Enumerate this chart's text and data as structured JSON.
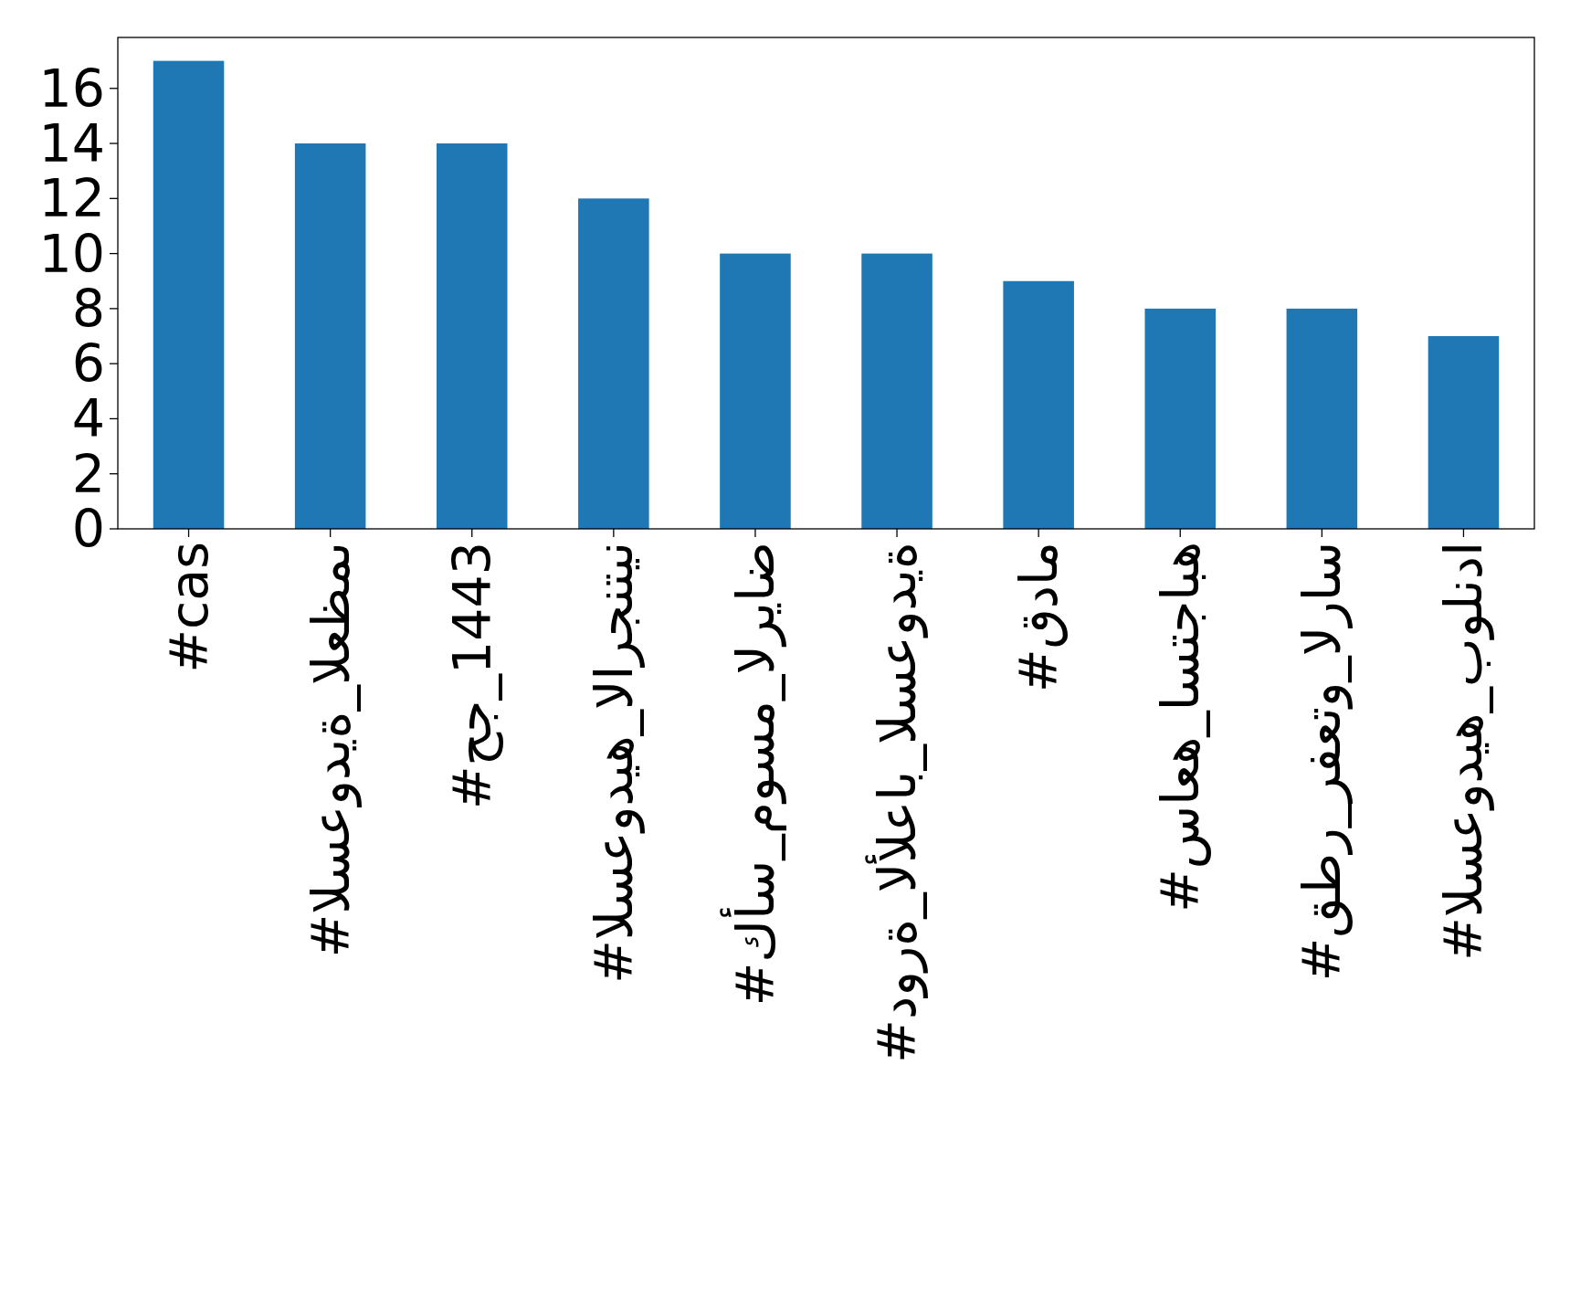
{
  "chart_data": {
    "type": "bar",
    "categories": [
      "#cas",
      "#السعودية_العظمى",
      "#حج_1443",
      "#السعوديه_الارجنتين",
      "#كأس_موسم_الرياض",
      "#دورة_الألعاب_السعودية",
      "#قدام",
      "#ساعه_استجابه",
      "#قطر_رفعتو_الراس",
      "#السعوديه_بولندا"
    ],
    "values": [
      17,
      14,
      14,
      12,
      10,
      10,
      9,
      8,
      8,
      7
    ],
    "color": "#1f77b4",
    "ylim": [
      0,
      17.85
    ],
    "yticks": [
      0,
      2,
      4,
      6,
      8,
      10,
      12,
      14,
      16
    ],
    "grid": false
  }
}
